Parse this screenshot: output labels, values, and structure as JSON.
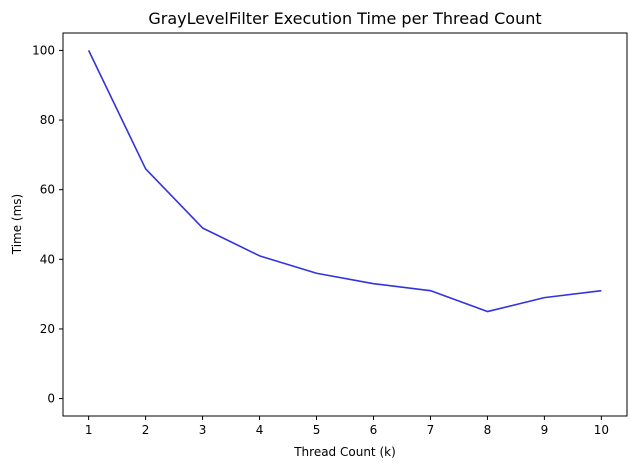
{
  "chart_data": {
    "type": "line",
    "title": "GrayLevelFilter Execution Time per Thread Count",
    "xlabel": "Thread Count (k)",
    "ylabel": "Time (ms)",
    "x": [
      1,
      2,
      3,
      4,
      5,
      6,
      7,
      8,
      9,
      10
    ],
    "series": [
      {
        "values": [
          100,
          66,
          49,
          41,
          36,
          33,
          31,
          25,
          29,
          31
        ],
        "color": "#3333dd"
      }
    ],
    "xticks": [
      1,
      2,
      3,
      4,
      5,
      6,
      7,
      8,
      9,
      10
    ],
    "yticks": [
      0,
      20,
      40,
      60,
      80,
      100
    ],
    "xlim": [
      0.55,
      10.45
    ],
    "ylim": [
      -5,
      105
    ],
    "grid": false,
    "legend": "none"
  }
}
